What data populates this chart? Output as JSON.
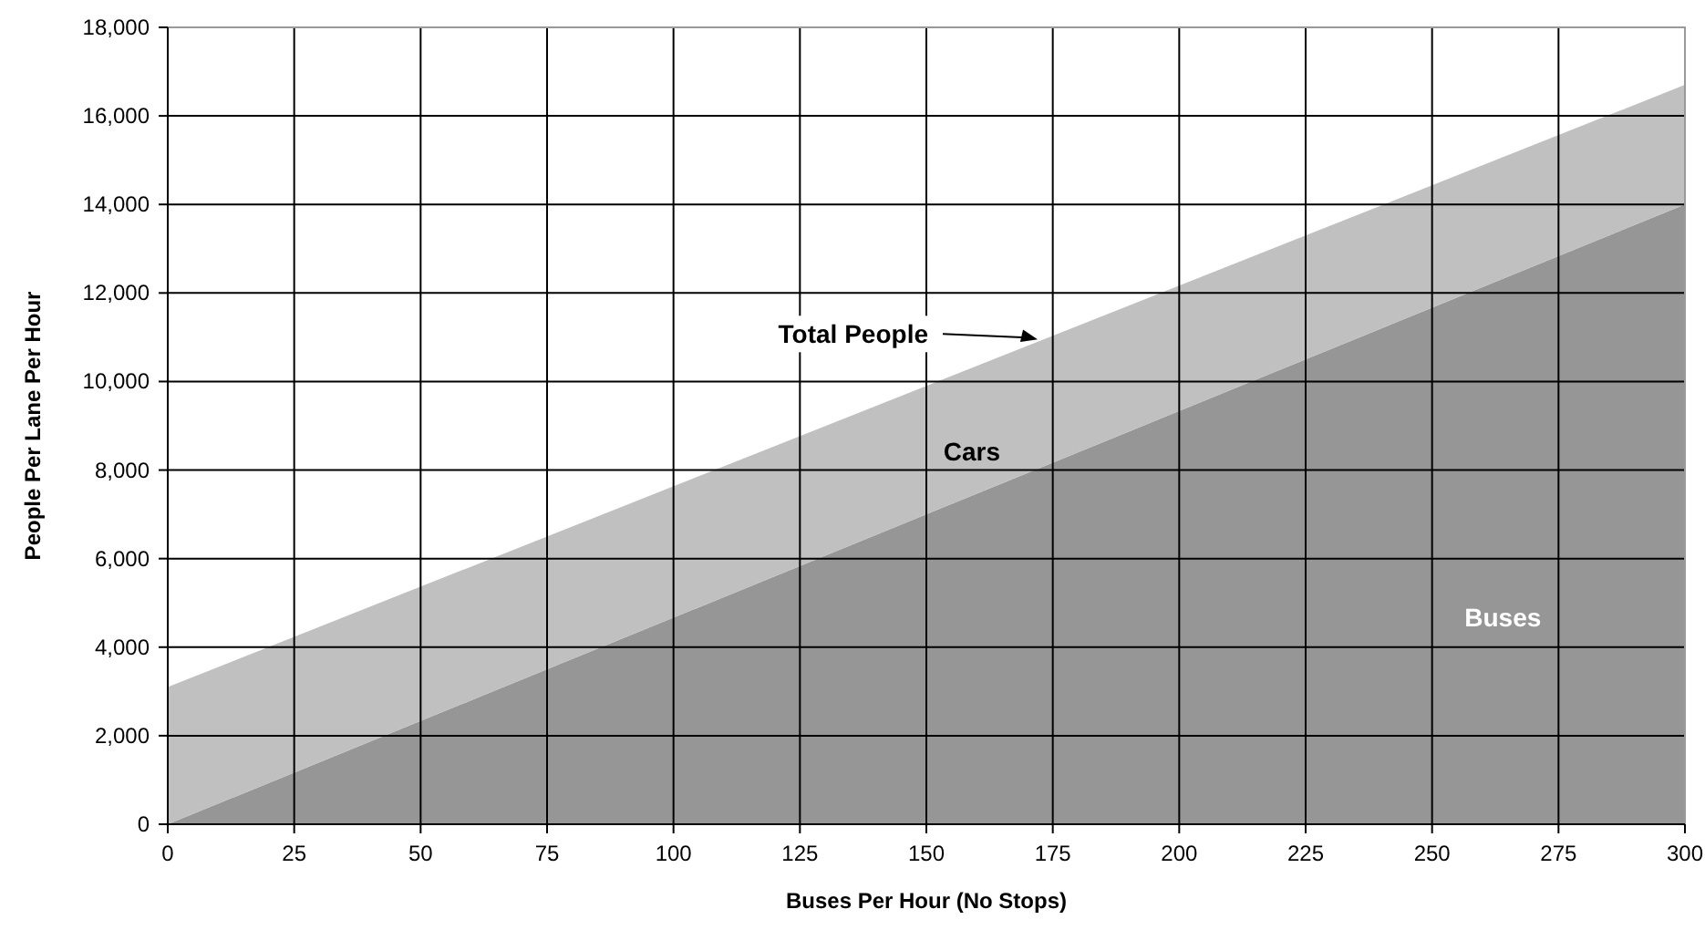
{
  "chart_data": {
    "type": "area",
    "stacked": true,
    "xlabel": "Buses Per Hour (No Stops)",
    "ylabel": "People Per Lane Per Hour",
    "x": [
      0,
      300
    ],
    "series": [
      {
        "name": "Buses",
        "color": "#969696",
        "values": [
          0,
          14000
        ]
      },
      {
        "name": "Cars",
        "color": "#c0c0c0",
        "values": [
          3100,
          2700
        ]
      }
    ],
    "xlim": [
      0,
      300
    ],
    "xticks": [
      0,
      25,
      50,
      75,
      100,
      125,
      150,
      175,
      200,
      225,
      250,
      275,
      300
    ],
    "ylim": [
      0,
      18000
    ],
    "yticks": [
      {
        "value": 0,
        "label": "0"
      },
      {
        "value": 2000,
        "label": "2,000"
      },
      {
        "value": 4000,
        "label": "4,000"
      },
      {
        "value": 6000,
        "label": "6,000"
      },
      {
        "value": 8000,
        "label": "8,000"
      },
      {
        "value": 10000,
        "label": "10,000"
      },
      {
        "value": 12000,
        "label": "12,000"
      },
      {
        "value": 14000,
        "label": "14,000"
      },
      {
        "value": 16000,
        "label": "16,000"
      },
      {
        "value": 18000,
        "label": "18,000"
      }
    ],
    "grid": true,
    "annotations": [
      {
        "text": "Total People",
        "x": 172,
        "y": 10950
      }
    ]
  }
}
